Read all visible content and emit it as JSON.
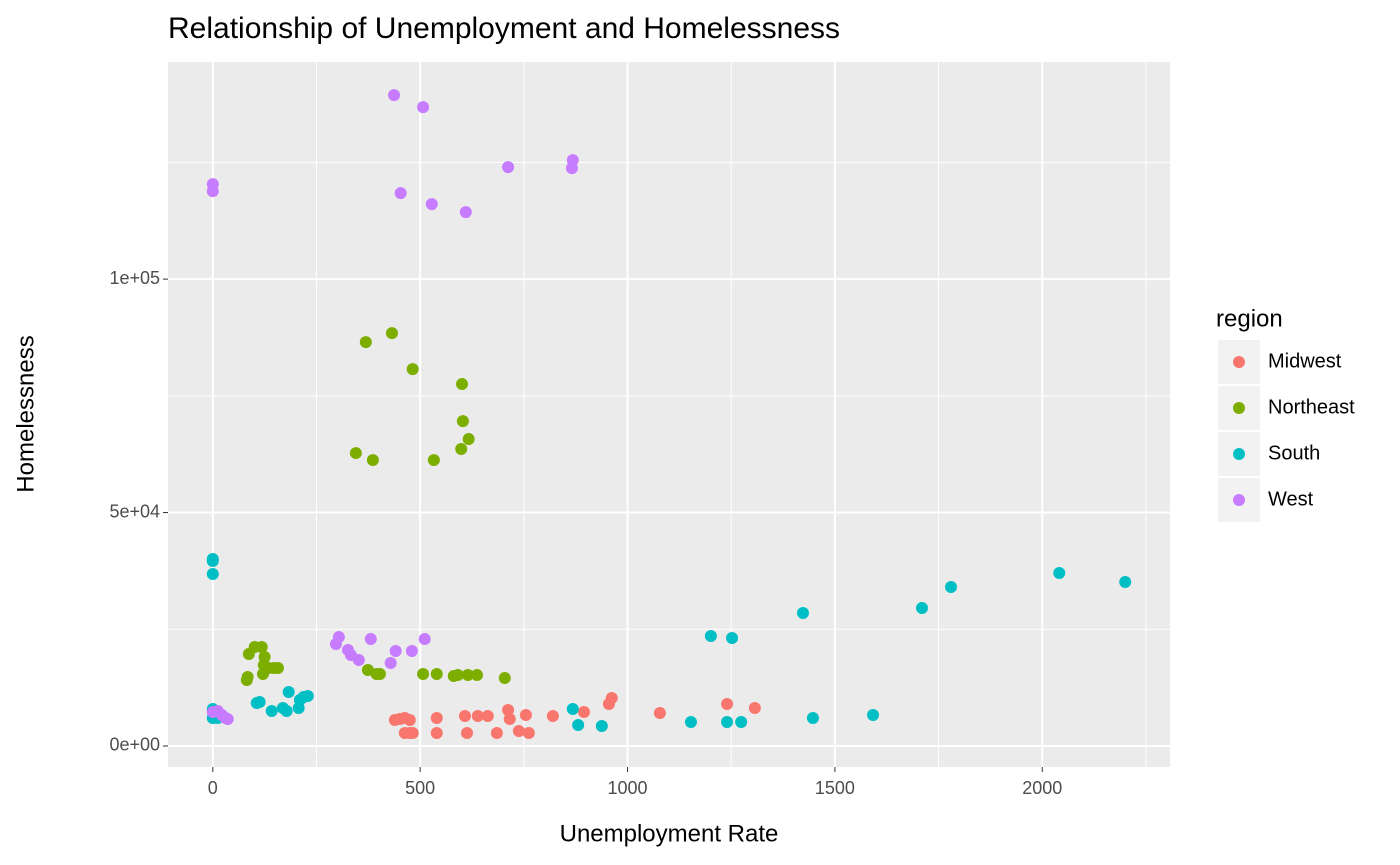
{
  "chart_data": {
    "type": "scatter",
    "title": "Relationship of Unemployment and Homelessness",
    "x_label": "Unemployment Rate",
    "y_label": "Homelessness",
    "legend_title": "region",
    "legend_position": "right",
    "grid": true,
    "xlim": [
      -108,
      2308
    ],
    "ylim": [
      -4500,
      146500
    ],
    "xticks": [
      0,
      500,
      1000,
      1500,
      2000
    ],
    "yticks": [
      {
        "value": 0,
        "label": "0e+00"
      },
      {
        "value": 50000,
        "label": "5e+04"
      },
      {
        "value": 100000,
        "label": "1e+05"
      }
    ],
    "x_minor_grid": [
      250,
      750,
      1250,
      1750,
      2250
    ],
    "y_minor_grid": [
      25000,
      75000,
      125000
    ],
    "series": [
      {
        "name": "Midwest",
        "color": "#F8766D",
        "x": [
          439,
          451,
          463,
          475,
          482,
          463,
          475,
          540,
          540,
          608,
          613,
          639,
          663,
          685,
          712,
          716,
          738,
          755,
          762,
          820,
          895,
          955,
          962,
          1078,
          1240,
          1307
        ],
        "values": [
          5570,
          5780,
          6000,
          5570,
          2780,
          2780,
          2780,
          6000,
          2780,
          6420,
          2780,
          6420,
          6420,
          2780,
          7710,
          5780,
          3210,
          6640,
          2780,
          6420,
          7280,
          8990,
          10280,
          7070,
          8990,
          8140
        ]
      },
      {
        "name": "Northeast",
        "color": "#7CAE00",
        "x": [
          369,
          432,
          482,
          601,
          603,
          617,
          599,
          533,
          345,
          386,
          87,
          101,
          118,
          125,
          84,
          82,
          121,
          123,
          135,
          147,
          157,
          374,
          395,
          403,
          540,
          507,
          581,
          591,
          615,
          637,
          704
        ],
        "values": [
          86510,
          88440,
          80730,
          77520,
          69590,
          65740,
          63600,
          61240,
          62740,
          61240,
          19700,
          21200,
          21200,
          19060,
          14780,
          14130,
          15420,
          17340,
          16700,
          16700,
          16700,
          16270,
          15420,
          15420,
          15420,
          15420,
          14990,
          15200,
          15200,
          15200,
          14560
        ]
      },
      {
        "name": "South",
        "color": "#00BFC4",
        "x": [
          0,
          0,
          0,
          0,
          0,
          12,
          106,
          113,
          142,
          169,
          178,
          183,
          207,
          210,
          219,
          229,
          868,
          881,
          938,
          1153,
          1240,
          1274,
          1447,
          1592,
          1201,
          1252,
          1423,
          1710,
          1780,
          2041,
          2200
        ],
        "values": [
          40040,
          39610,
          36830,
          7920,
          6000,
          6000,
          9210,
          9420,
          7490,
          8140,
          7490,
          11560,
          8140,
          9850,
          10490,
          10710,
          7920,
          4500,
          4280,
          5140,
          5140,
          5140,
          6000,
          6640,
          23550,
          23130,
          28480,
          29550,
          34050,
          37040,
          35120
        ]
      },
      {
        "name": "West",
        "color": "#C77CFF",
        "x": [
          437,
          507,
          0,
          0,
          453,
          528,
          610,
          712,
          868,
          866,
          297,
          304,
          326,
          333,
          352,
          381,
          429,
          441,
          480,
          511,
          12,
          22,
          31,
          36,
          0
        ],
        "values": [
          139400,
          136830,
          120340,
          118840,
          118420,
          116060,
          114350,
          123980,
          125480,
          123770,
          21840,
          23340,
          20560,
          19490,
          18420,
          22910,
          17770,
          20340,
          20340,
          22910,
          7490,
          6640,
          6000,
          5780,
          7280
        ]
      }
    ]
  }
}
